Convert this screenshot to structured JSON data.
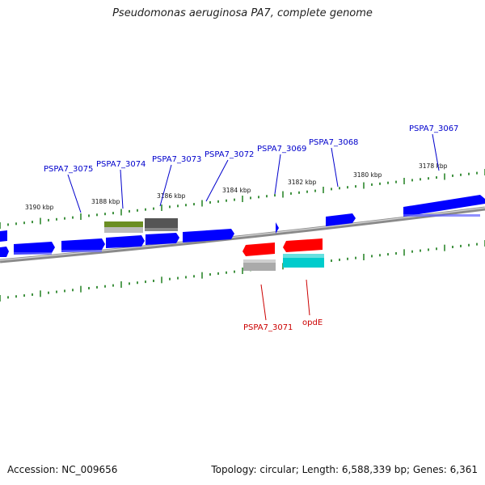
{
  "header": {
    "title": "Pseudomonas aeruginosa PA7, complete genome"
  },
  "footer": {
    "accession": "Accession: NC_009656",
    "topology": "Topology: circular; Length: 6,588,339 bp; Genes: 6,361"
  },
  "colors": {
    "forward_gene": "#0000ff",
    "reverse_gene": "#ff0000",
    "label_forward": "#0000cc",
    "label_reverse": "#cc0000",
    "backbone": "#888888",
    "ticks": "#117711",
    "cog_olive": "#6b8e23",
    "cog_dark_gray": "#555555",
    "cog_light_gray": "#aaaaaa",
    "cog_cyan": "#00cccc"
  },
  "scale_labels": [
    "3190 kbp",
    "3188 kbp",
    "3186 kbp",
    "3184 kbp",
    "3182 kbp",
    "3180 kbp",
    "3178 kbp"
  ],
  "forward_labels": [
    "PSPA7_3075",
    "PSPA7_3074",
    "PSPA7_3073",
    "PSPA7_3072",
    "PSPA7_3069",
    "PSPA7_3068",
    "PSPA7_3067"
  ],
  "reverse_labels": [
    "PSPA7_3071",
    "opdE"
  ]
}
